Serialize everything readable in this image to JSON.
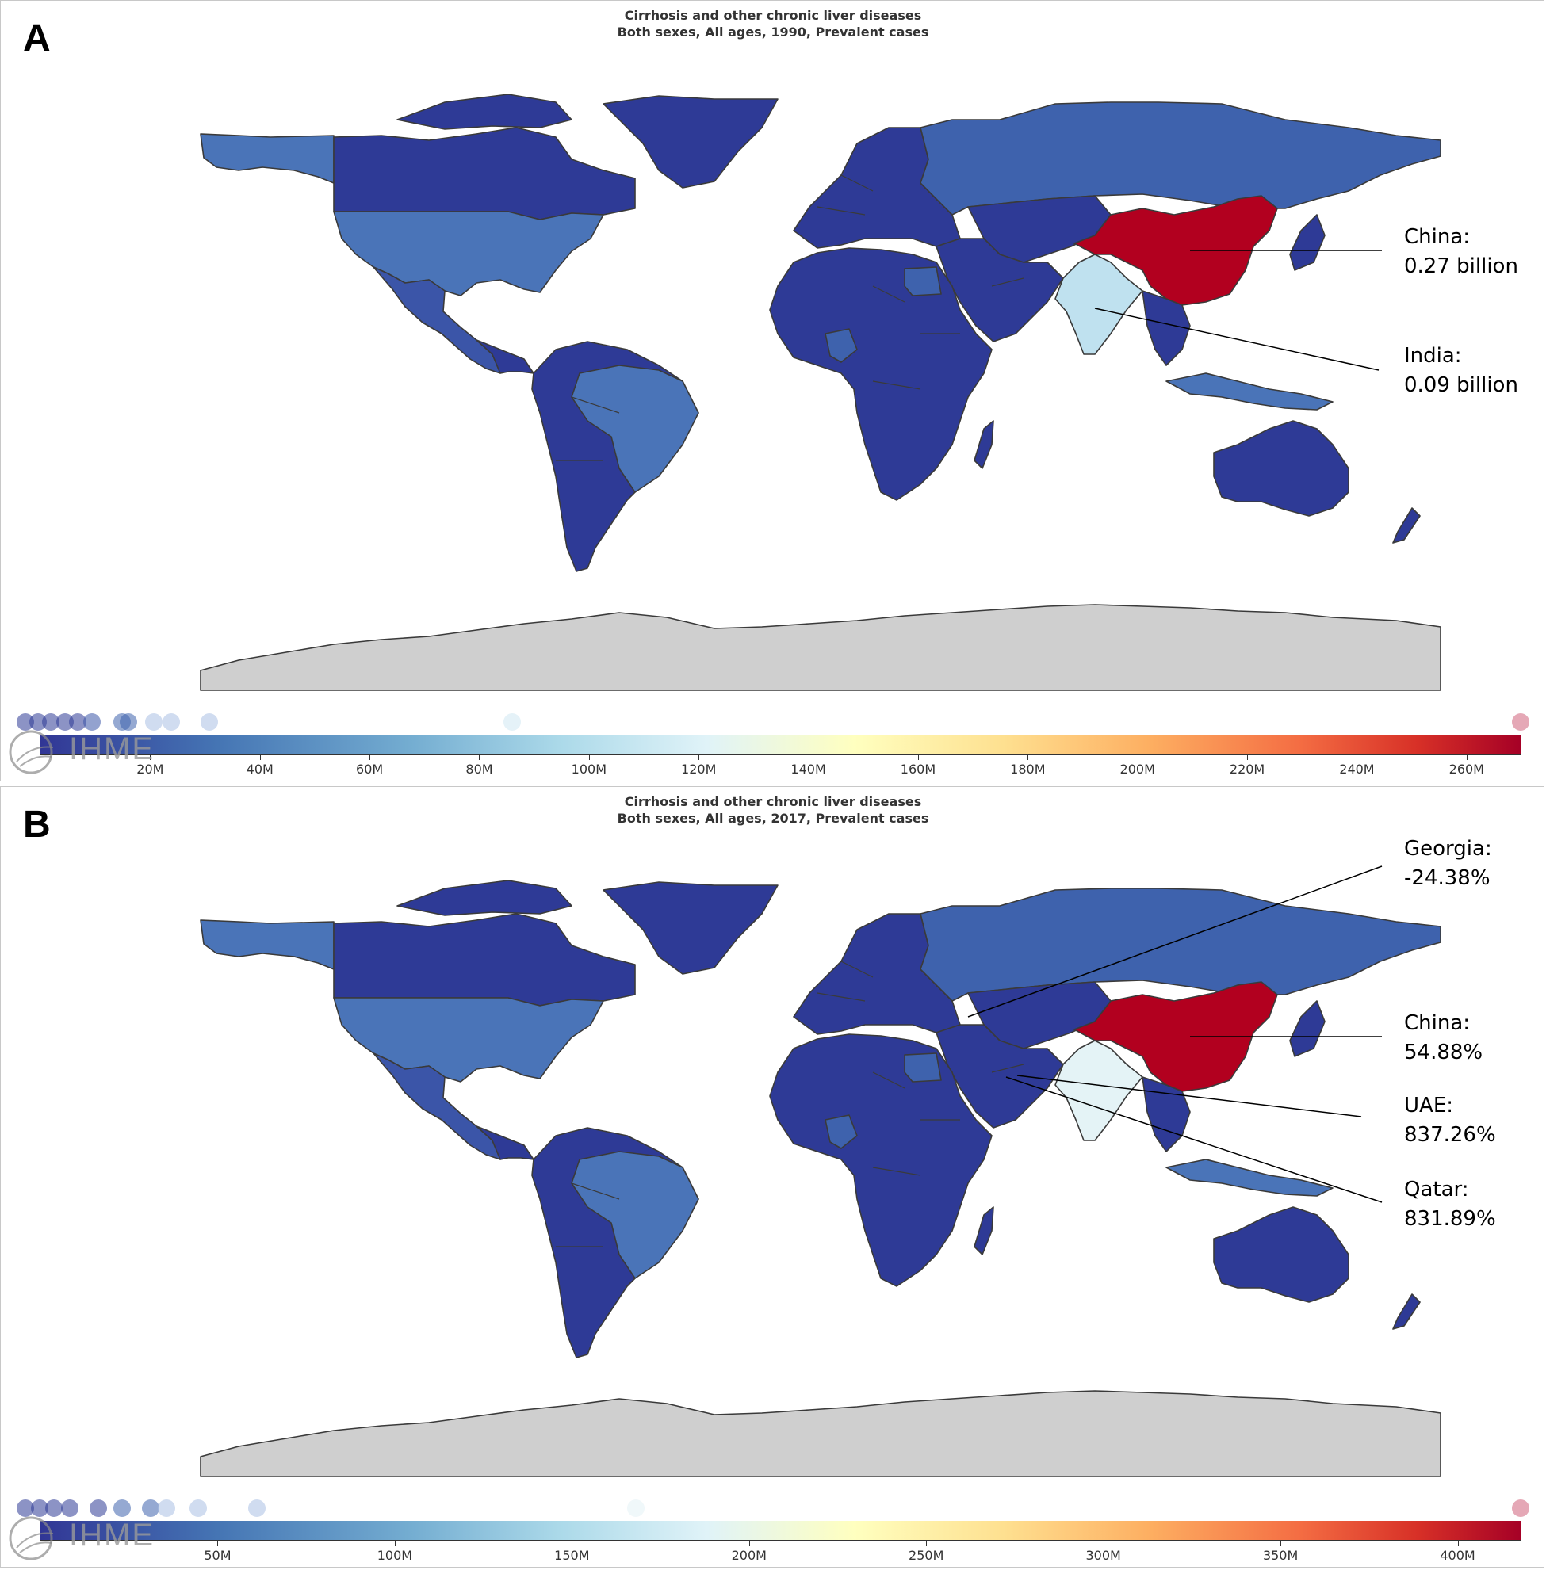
{
  "panels": [
    {
      "letter": "A",
      "title_line1": "Cirrhosis and other chronic liver diseases",
      "title_line2": "Both sexes, All ages, 1990, Prevalent cases",
      "callouts": [
        {
          "label": "China:",
          "value": "0.27 billion"
        },
        {
          "label": "India:",
          "value": "0.09 billion"
        }
      ],
      "legend_ticks": [
        "20M",
        "40M",
        "60M",
        "80M",
        "100M",
        "120M",
        "140M",
        "160M",
        "180M",
        "200M",
        "220M",
        "240M",
        "260M"
      ],
      "legend_tick_values": [
        20,
        40,
        60,
        80,
        100,
        120,
        140,
        160,
        180,
        200,
        220,
        240,
        260
      ],
      "legend_max": 270,
      "logo_text": "IHME"
    },
    {
      "letter": "B",
      "title_line1": "Cirrhosis and other chronic liver diseases",
      "title_line2": "Both sexes, All ages, 2017, Prevalent cases",
      "callouts": [
        {
          "label": "Georgia:",
          "value": "-24.38%"
        },
        {
          "label": "China:",
          "value": "54.88%"
        },
        {
          "label": "UAE:",
          "value": "837.26%"
        },
        {
          "label": "Qatar:",
          "value": "831.89%"
        }
      ],
      "legend_ticks": [
        "50M",
        "100M",
        "150M",
        "200M",
        "250M",
        "300M",
        "350M",
        "400M"
      ],
      "legend_tick_values": [
        50,
        100,
        150,
        200,
        250,
        300,
        350,
        400
      ],
      "legend_max": 418,
      "logo_text": "IHME"
    }
  ],
  "colors": {
    "darkest_blue": "#2e3a96",
    "dark_blue": "#3b55a8",
    "mid_blue": "#4a74b8",
    "light_blue": "#bfe1ef",
    "china_red": "#b2001f",
    "no_data": "#cfcfcf"
  }
}
